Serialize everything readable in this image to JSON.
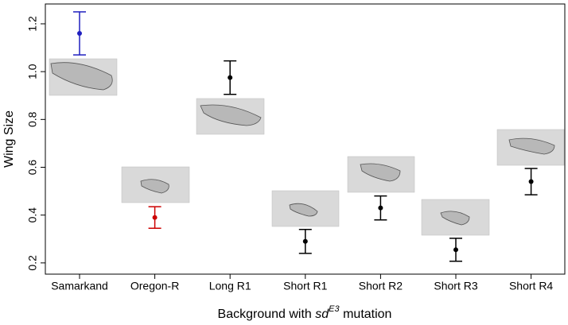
{
  "chart_data": {
    "type": "errorbar",
    "y_label": "Wing Size",
    "x_label": {
      "prefix": "Background with ",
      "gene": "sd",
      "allele": "E3",
      "suffix": " mutation"
    },
    "categories": [
      "Samarkand",
      "Oregon-R",
      "Long R1",
      "Short R1",
      "Short R2",
      "Short R3",
      "Short R4"
    ],
    "values": [
      1.16,
      0.39,
      0.975,
      0.29,
      0.43,
      0.255,
      0.54
    ],
    "errors": [
      0.09,
      0.045,
      0.07,
      0.05,
      0.05,
      0.048,
      0.055
    ],
    "colors": [
      "#1f1fbf",
      "#cc0000",
      "#000000",
      "#000000",
      "#000000",
      "#000000",
      "#000000"
    ],
    "ylim": [
      0.153,
      1.283
    ],
    "yticks": [
      0.2,
      0.4,
      0.6,
      0.8,
      {
        "value": 1,
        "label": "1.0"
      },
      1.2
    ]
  }
}
